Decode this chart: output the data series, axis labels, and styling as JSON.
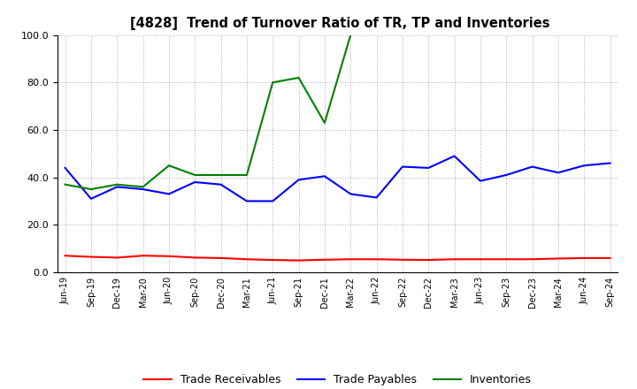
{
  "title": "[4828]  Trend of Turnover Ratio of TR, TP and Inventories",
  "x_labels": [
    "Jun-19",
    "Sep-19",
    "Dec-19",
    "Mar-20",
    "Jun-20",
    "Sep-20",
    "Dec-20",
    "Mar-21",
    "Jun-21",
    "Sep-21",
    "Dec-21",
    "Mar-22",
    "Jun-22",
    "Sep-22",
    "Dec-22",
    "Mar-23",
    "Jun-23",
    "Sep-23",
    "Dec-23",
    "Mar-24",
    "Jun-24",
    "Sep-24"
  ],
  "trade_receivables": [
    7.0,
    6.5,
    6.2,
    7.0,
    6.8,
    6.2,
    6.0,
    5.5,
    5.2,
    5.0,
    5.3,
    5.5,
    5.5,
    5.3,
    5.2,
    5.5,
    5.5,
    5.5,
    5.5,
    5.8,
    6.0,
    6.0
  ],
  "trade_payables": [
    44.0,
    31.0,
    36.0,
    35.0,
    33.0,
    38.0,
    37.0,
    30.0,
    30.0,
    39.0,
    40.5,
    33.0,
    31.5,
    44.5,
    44.0,
    49.0,
    38.5,
    41.0,
    44.5,
    42.0,
    45.0,
    46.0
  ],
  "inventories": [
    37.0,
    35.0,
    37.0,
    36.0,
    45.0,
    41.0,
    41.0,
    41.0,
    80.0,
    82.0,
    63.0,
    100.0,
    null,
    null,
    null,
    null,
    null,
    null,
    null,
    null,
    null,
    null
  ],
  "color_tr": "#ff0000",
  "color_tp": "#0000ff",
  "color_inv": "#008000",
  "ylim": [
    0.0,
    100.0
  ],
  "yticks": [
    0.0,
    20.0,
    40.0,
    60.0,
    80.0,
    100.0
  ],
  "legend_labels": [
    "Trade Receivables",
    "Trade Payables",
    "Inventories"
  ],
  "background_color": "#ffffff",
  "grid_color": "#888888"
}
